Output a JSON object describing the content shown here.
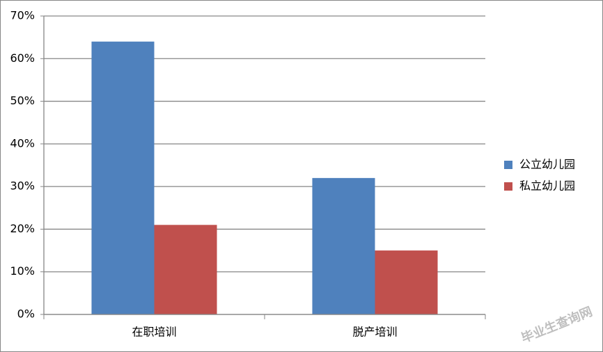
{
  "chart_data": {
    "type": "bar",
    "categories": [
      "在职培训",
      "脱产培训"
    ],
    "series": [
      {
        "name": "公立幼儿园",
        "color": "#4f81bd",
        "values": [
          64,
          32
        ]
      },
      {
        "name": "私立幼儿园",
        "color": "#c0504d",
        "values": [
          21,
          15
        ]
      }
    ],
    "ylim": [
      0,
      70
    ],
    "yticks": [
      {
        "value": 0,
        "label": "0%"
      },
      {
        "value": 10,
        "label": "10%"
      },
      {
        "value": 20,
        "label": "20%"
      },
      {
        "value": 30,
        "label": "30%"
      },
      {
        "value": 40,
        "label": "40%"
      },
      {
        "value": 50,
        "label": "50%"
      },
      {
        "value": 60,
        "label": "60%"
      },
      {
        "value": 70,
        "label": "70%"
      }
    ],
    "grid": true,
    "legend": "right",
    "watermark": "毕业生查询网"
  }
}
